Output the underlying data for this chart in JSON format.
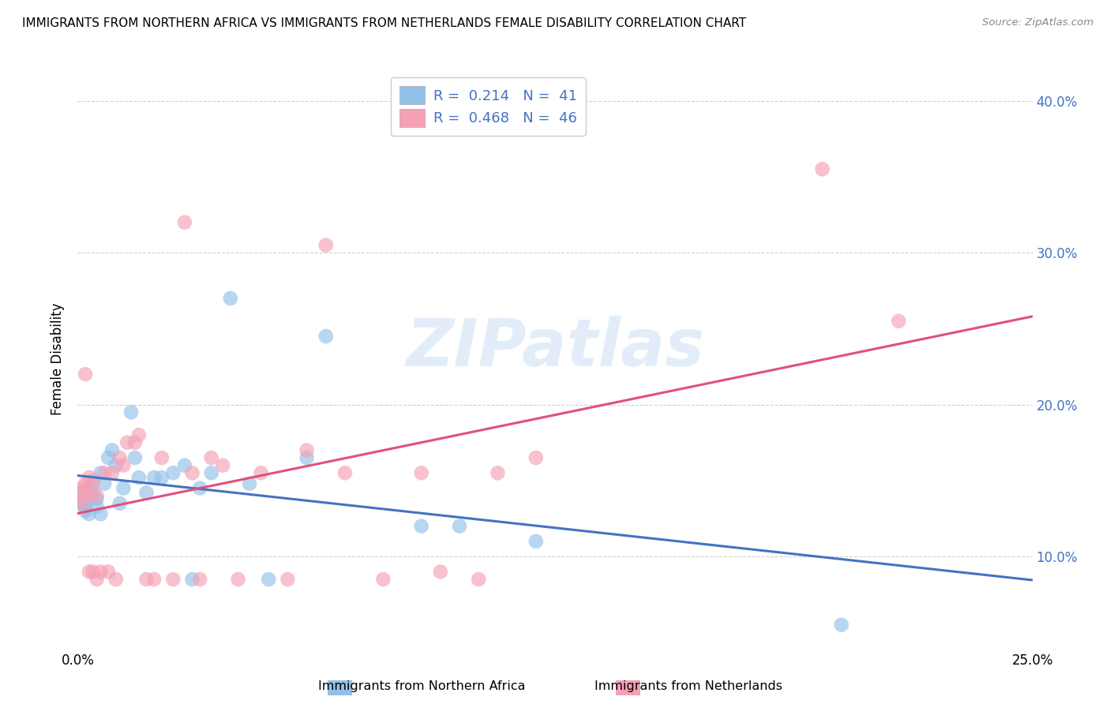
{
  "title": "IMMIGRANTS FROM NORTHERN AFRICA VS IMMIGRANTS FROM NETHERLANDS FEMALE DISABILITY CORRELATION CHART",
  "source": "Source: ZipAtlas.com",
  "ylabel": "Female Disability",
  "xlim": [
    0.0,
    0.25
  ],
  "ylim": [
    0.04,
    0.42
  ],
  "yticks": [
    0.1,
    0.2,
    0.3,
    0.4
  ],
  "xticks": [
    0.0,
    0.05,
    0.1,
    0.15,
    0.2,
    0.25
  ],
  "blue_color": "#92c0e8",
  "pink_color": "#f5a0b5",
  "blue_line_color": "#4472c4",
  "pink_line_color": "#e05080",
  "blue_R": 0.214,
  "blue_N": 41,
  "pink_R": 0.468,
  "pink_N": 46,
  "blue_scatter_x": [
    0.001,
    0.001,
    0.001,
    0.002,
    0.002,
    0.002,
    0.003,
    0.003,
    0.003,
    0.004,
    0.004,
    0.005,
    0.005,
    0.006,
    0.006,
    0.007,
    0.008,
    0.009,
    0.01,
    0.011,
    0.012,
    0.014,
    0.015,
    0.016,
    0.018,
    0.02,
    0.022,
    0.025,
    0.028,
    0.03,
    0.032,
    0.035,
    0.04,
    0.045,
    0.05,
    0.06,
    0.065,
    0.09,
    0.1,
    0.12,
    0.2
  ],
  "blue_scatter_y": [
    0.138,
    0.143,
    0.135,
    0.14,
    0.133,
    0.13,
    0.145,
    0.138,
    0.128,
    0.15,
    0.142,
    0.138,
    0.133,
    0.155,
    0.128,
    0.148,
    0.165,
    0.17,
    0.16,
    0.135,
    0.145,
    0.195,
    0.165,
    0.152,
    0.142,
    0.152,
    0.152,
    0.155,
    0.16,
    0.085,
    0.145,
    0.155,
    0.27,
    0.148,
    0.085,
    0.165,
    0.245,
    0.12,
    0.12,
    0.11,
    0.055
  ],
  "pink_scatter_x": [
    0.001,
    0.001,
    0.001,
    0.002,
    0.002,
    0.002,
    0.003,
    0.003,
    0.003,
    0.004,
    0.004,
    0.005,
    0.005,
    0.006,
    0.007,
    0.008,
    0.009,
    0.01,
    0.011,
    0.012,
    0.013,
    0.015,
    0.016,
    0.018,
    0.02,
    0.022,
    0.025,
    0.028,
    0.03,
    0.032,
    0.035,
    0.038,
    0.042,
    0.048,
    0.055,
    0.06,
    0.065,
    0.07,
    0.08,
    0.09,
    0.095,
    0.105,
    0.11,
    0.12,
    0.195,
    0.215
  ],
  "pink_scatter_y": [
    0.135,
    0.145,
    0.138,
    0.148,
    0.143,
    0.22,
    0.152,
    0.14,
    0.09,
    0.148,
    0.09,
    0.14,
    0.085,
    0.09,
    0.155,
    0.09,
    0.155,
    0.085,
    0.165,
    0.16,
    0.175,
    0.175,
    0.18,
    0.085,
    0.085,
    0.165,
    0.085,
    0.32,
    0.155,
    0.085,
    0.165,
    0.16,
    0.085,
    0.155,
    0.085,
    0.17,
    0.305,
    0.155,
    0.085,
    0.155,
    0.09,
    0.085,
    0.155,
    0.165,
    0.355,
    0.255
  ],
  "watermark_text": "ZIPatlas",
  "legend_label_blue": "Immigrants from Northern Africa",
  "legend_label_pink": "Immigrants from Netherlands",
  "background_color": "#ffffff",
  "grid_color": "#d0d0d0"
}
